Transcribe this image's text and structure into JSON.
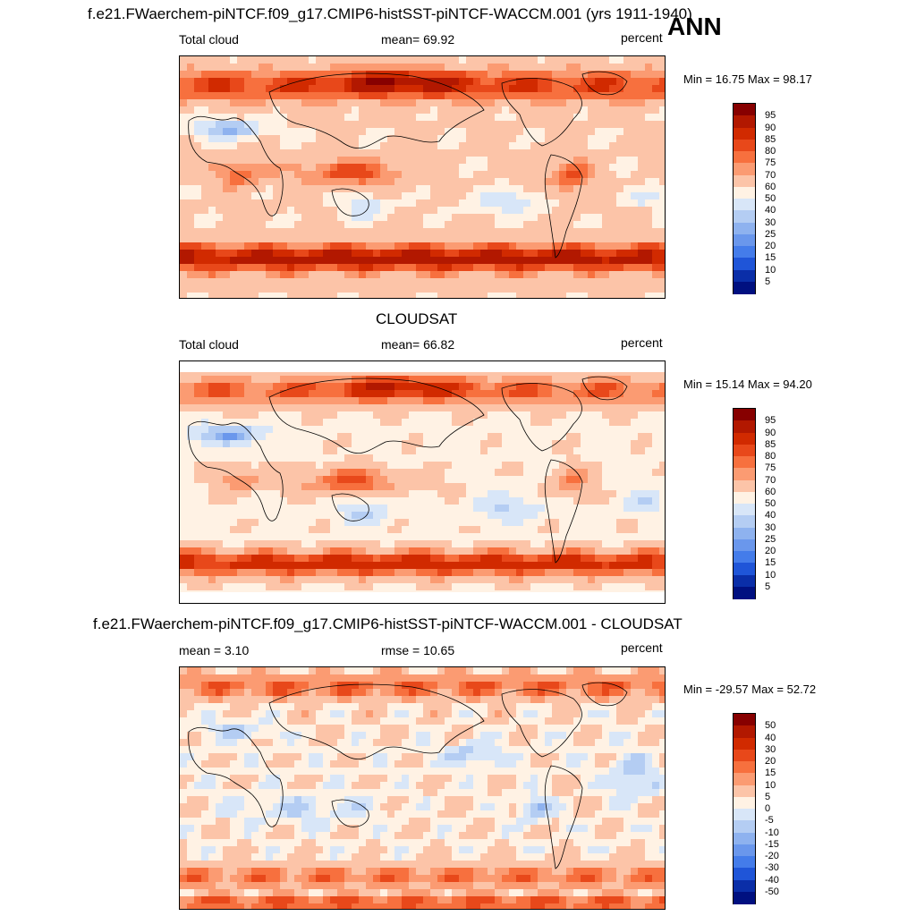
{
  "header": {
    "title": "f.e21.FWaerchem-piNTCF.f09_g17.CMIP6-histSST-piNTCF-WACCM.001 (yrs 1911-1940)",
    "season": "ANN"
  },
  "panels": [
    {
      "id": "model",
      "title": "",
      "left_label": "Total cloud",
      "center_label": "mean=  69.92",
      "right_label": "percent",
      "minmax": "Min =  16.75 Max =  98.17"
    },
    {
      "id": "obs",
      "title": "CLOUDSAT",
      "left_label": "Total cloud",
      "center_label": "mean=  66.82",
      "right_label": "percent",
      "minmax": "Min =  15.14 Max =  94.20"
    },
    {
      "id": "diff",
      "title": "f.e21.FWaerchem-piNTCF.f09_g17.CMIP6-histSST-piNTCF-WACCM.001 - CLOUDSAT",
      "left_label": "mean =   3.10",
      "center_label": "rmse =  10.65",
      "right_label": "percent",
      "minmax": "Min = -29.57 Max =  52.72"
    }
  ],
  "chart_data": [
    {
      "type": "heatmap",
      "title": "Total cloud",
      "units": "percent",
      "mean": 69.92,
      "min": 16.75,
      "max": 98.17,
      "colorbar_levels": [
        "95",
        "90",
        "85",
        "80",
        "75",
        "70",
        "60",
        "50",
        "40",
        "30",
        "25",
        "20",
        "15",
        "10",
        "5"
      ],
      "colorbar_colors": [
        "#870000",
        "#b21800",
        "#d12a00",
        "#e8481a",
        "#f7703e",
        "#fb9b72",
        "#fcc4a8",
        "#fff2e4",
        "#d8e6f8",
        "#b4cdf3",
        "#8eb2ef",
        "#6a97ec",
        "#447cea",
        "#1f55d8",
        "#0a2ea8",
        "#001080"
      ]
    },
    {
      "type": "heatmap",
      "title": "CLOUDSAT",
      "units": "percent",
      "mean": 66.82,
      "min": 15.14,
      "max": 94.2,
      "colorbar_levels": [
        "95",
        "90",
        "85",
        "80",
        "75",
        "70",
        "60",
        "50",
        "40",
        "30",
        "25",
        "20",
        "15",
        "10",
        "5"
      ],
      "colorbar_colors": [
        "#870000",
        "#b21800",
        "#d12a00",
        "#e8481a",
        "#f7703e",
        "#fb9b72",
        "#fcc4a8",
        "#fff2e4",
        "#d8e6f8",
        "#b4cdf3",
        "#8eb2ef",
        "#6a97ec",
        "#447cea",
        "#1f55d8",
        "#0a2ea8",
        "#001080"
      ]
    },
    {
      "type": "heatmap",
      "title": "f.e21.FWaerchem-piNTCF.f09_g17.CMIP6-histSST-piNTCF-WACCM.001 - CLOUDSAT",
      "units": "percent",
      "mean": 3.1,
      "rmse": 10.65,
      "min": -29.57,
      "max": 52.72,
      "colorbar_levels": [
        "50",
        "40",
        "30",
        "20",
        "15",
        "10",
        "5",
        "0",
        "-5",
        "-10",
        "-15",
        "-20",
        "-30",
        "-40",
        "-50"
      ],
      "colorbar_colors": [
        "#870000",
        "#b21800",
        "#d12a00",
        "#e8481a",
        "#f7703e",
        "#fb9b72",
        "#fcc4a8",
        "#fff2e4",
        "#d8e6f8",
        "#b4cdf3",
        "#8eb2ef",
        "#6a97ec",
        "#447cea",
        "#1f55d8",
        "#0a2ea8",
        "#001080"
      ]
    }
  ]
}
